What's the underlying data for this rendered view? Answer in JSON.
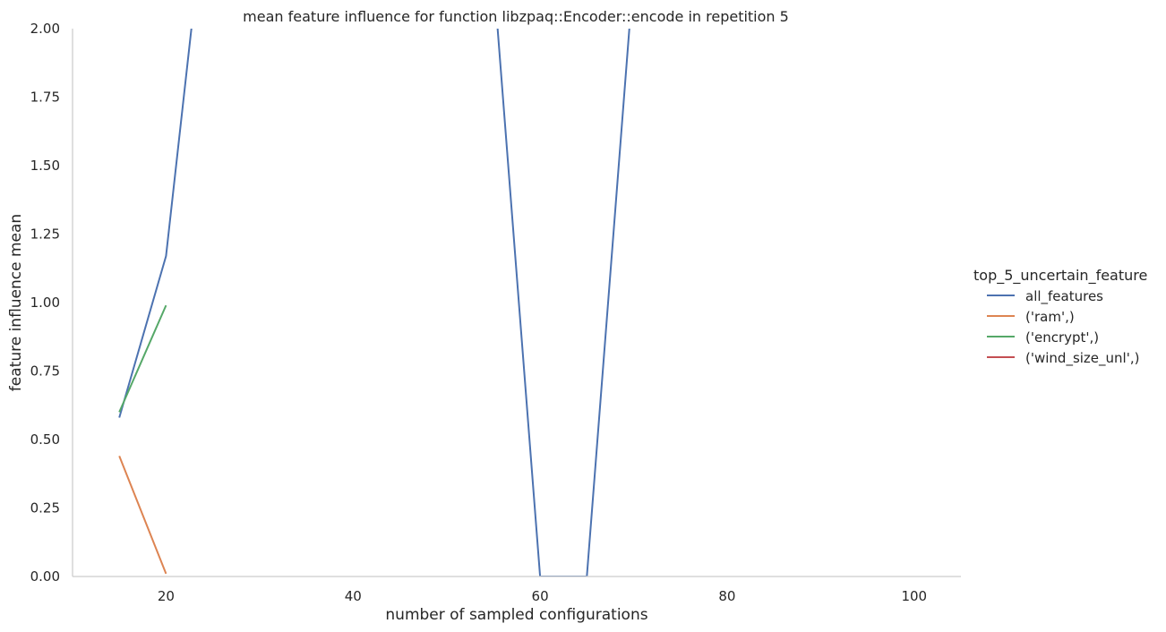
{
  "chart_data": {
    "type": "line",
    "title": "mean feature influence for function libzpaq::Encoder::encode in repetition 5",
    "xlabel": "number of sampled configurations",
    "ylabel": "feature influence mean",
    "xlim": [
      10,
      105
    ],
    "ylim": [
      0,
      2
    ],
    "xticks": [
      20,
      40,
      60,
      80,
      100
    ],
    "yticks": [
      0.0,
      0.25,
      0.5,
      0.75,
      1.0,
      1.25,
      1.5,
      1.75,
      2.0
    ],
    "grid": false,
    "legend_title": "top_5_uncertain_feature",
    "legend_position": "right",
    "series": [
      {
        "name": "all_features",
        "color": "#4c72b0",
        "x": [
          15,
          20,
          25,
          55,
          60,
          65,
          70
        ],
        "y": [
          0.58,
          1.17,
          2.7,
          2.2,
          0.0,
          0.0,
          2.2
        ]
      },
      {
        "name": "('ram',)",
        "color": "#dd8452",
        "x": [
          15,
          20
        ],
        "y": [
          0.44,
          0.01
        ]
      },
      {
        "name": "('encrypt',)",
        "color": "#55a868",
        "x": [
          15,
          20
        ],
        "y": [
          0.6,
          0.99
        ]
      },
      {
        "name": "('wind_size_unl',)",
        "color": "#c44e52",
        "x": [],
        "y": []
      }
    ]
  }
}
